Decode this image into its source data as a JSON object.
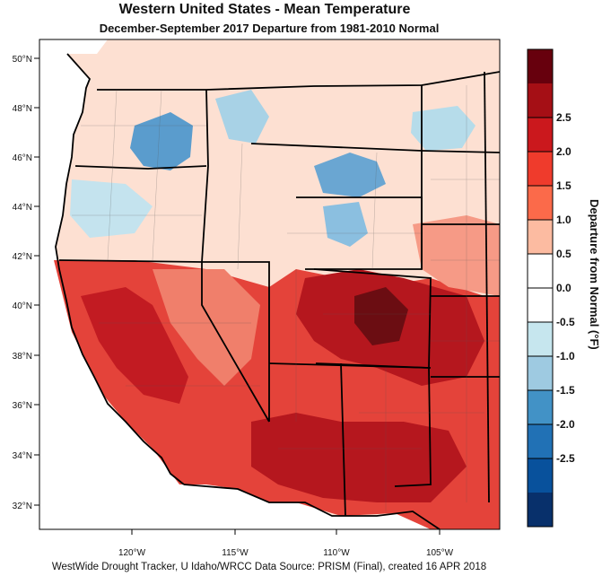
{
  "title": "Western United States - Mean Temperature",
  "subtitle": "December-September 2017  Departure from 1981-2010 Normal",
  "footer": "WestWide Drought Tracker, U Idaho/WRCC Data Source: PRISM (Final), created 16 APR 2018",
  "map": {
    "lat_ticks": [
      "50°N",
      "48°N",
      "46°N",
      "44°N",
      "42°N",
      "40°N",
      "38°N",
      "36°N",
      "34°N",
      "32°N"
    ],
    "lon_ticks": [
      "120°W",
      "115°W",
      "110°W",
      "105°W"
    ],
    "ocean_color": "#ffffff",
    "boundary_color": "#000000"
  },
  "colorbar": {
    "title": "Departure from Normal (°F)",
    "labels": [
      "2.5",
      "2.0",
      "1.5",
      "1.0",
      "0.5",
      "0.0",
      "-0.5",
      "-1.0",
      "-1.5",
      "-2.0",
      "-2.5"
    ],
    "colors": [
      "#67000d",
      "#a50f15",
      "#cb181d",
      "#ef3b2c",
      "#fb6a4a",
      "#fcbba1",
      "#ffffff",
      "#ffffff",
      "#c6e6ee",
      "#9ecae1",
      "#4292c6",
      "#2171b5",
      "#08519c",
      "#08306b"
    ]
  }
}
